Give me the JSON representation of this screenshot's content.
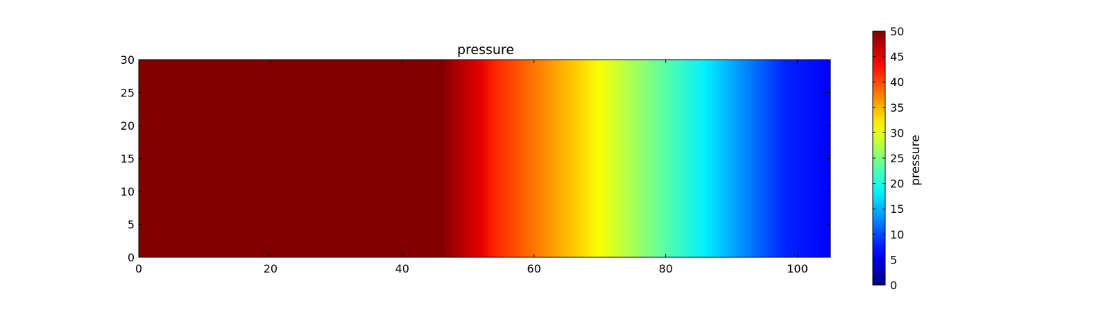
{
  "chart_data": {
    "type": "heatmap",
    "title": "pressure",
    "xlabel": "",
    "ylabel": "",
    "xlim": [
      0,
      105
    ],
    "ylim": [
      0,
      30
    ],
    "x_ticks": [
      0,
      20,
      40,
      60,
      80,
      100
    ],
    "y_ticks": [
      0,
      5,
      10,
      15,
      20,
      25,
      30
    ],
    "field_profile": {
      "description_axis": "x",
      "x": [
        0,
        46,
        48,
        52,
        54,
        60,
        66,
        70,
        75,
        80,
        86,
        92,
        98,
        105
      ],
      "values": [
        50,
        50,
        48,
        45,
        42,
        38,
        34,
        31,
        27,
        23,
        18,
        13,
        8,
        6
      ]
    },
    "colormap": "jet",
    "grid": false,
    "colorbar": {
      "label": "pressure",
      "vmin": 0,
      "vmax": 50,
      "ticks": [
        0,
        5,
        10,
        15,
        20,
        25,
        30,
        35,
        40,
        45,
        50
      ]
    }
  }
}
